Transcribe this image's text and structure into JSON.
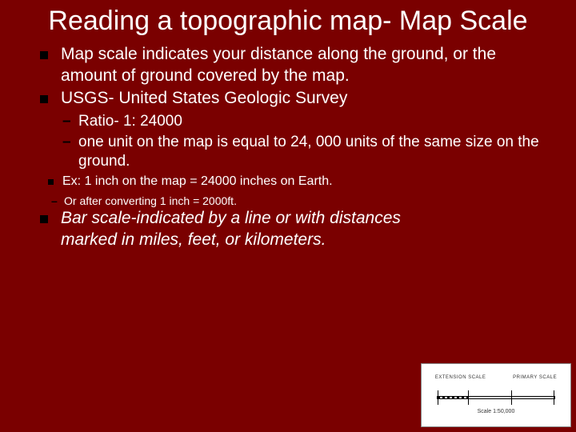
{
  "title": "Reading a topographic map- Map Scale",
  "bullets": {
    "b1": "Map scale indicates your distance along the ground, or the amount of ground covered by the map.",
    "b2": "USGS- United States Geologic Survey",
    "s1": "Ratio- 1: 24000",
    "s2": "one unit on the map is equal to 24, 000 units of the same size on the ground.",
    "e1": "Ex: 1 inch on the map = 24000 inches on Earth.",
    "c1": "Or after converting 1 inch = 2000ft.",
    "b3": "Bar scale-indicated by a line or with distances marked in miles, feet, or kilometers."
  },
  "scale_image": {
    "label_left": "EXTENSION SCALE",
    "label_right": "PRIMARY SCALE",
    "ratio_text": "Scale 1:50,000"
  },
  "colors": {
    "background": "#7a0000",
    "text": "#ffffff",
    "bullet": "#000000"
  }
}
